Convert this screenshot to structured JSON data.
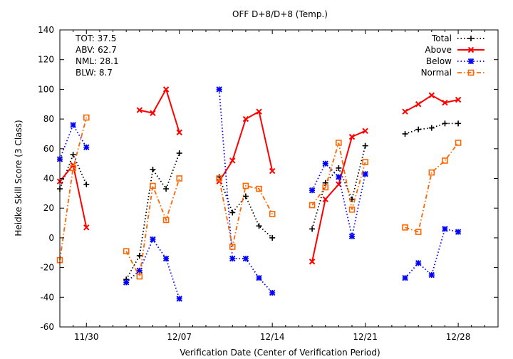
{
  "chart_data": {
    "type": "line",
    "title": "OFF D+8/D+8 (Temp.)",
    "xlabel": "Verification Date (Center of Verification Period)",
    "ylabel": "Heidke Skill Score (3 Class)",
    "xlim": [
      -2,
      31
    ],
    "ylim": [
      -60,
      140
    ],
    "x_ticks": [
      {
        "x": 0,
        "label": "11/30"
      },
      {
        "x": 7,
        "label": "12/07"
      },
      {
        "x": 14,
        "label": "12/14"
      },
      {
        "x": 21,
        "label": "12/21"
      },
      {
        "x": 28,
        "label": "12/28"
      }
    ],
    "y_ticks": [
      -60,
      -40,
      -20,
      0,
      20,
      40,
      60,
      80,
      100,
      120,
      140
    ],
    "grid": false,
    "legend_position": "top-right",
    "stats": [
      {
        "label": "TOT",
        "value": "37.5"
      },
      {
        "label": "ABV",
        "value": "62.7"
      },
      {
        "label": "NML",
        "value": "28.1"
      },
      {
        "label": "BLW",
        "value": "8.7"
      }
    ],
    "series": [
      {
        "name": "Total",
        "color": "#000000",
        "style": "dotted",
        "marker": "plus",
        "segments": [
          [
            [
              -2,
              33
            ],
            [
              -1,
              56
            ],
            [
              0,
              36
            ]
          ],
          [
            [
              3,
              -28
            ],
            [
              4,
              -12
            ],
            [
              5,
              46
            ],
            [
              6,
              33
            ],
            [
              7,
              57
            ]
          ],
          [
            [
              10,
              41
            ],
            [
              11,
              17
            ],
            [
              12,
              28
            ],
            [
              13,
              8
            ],
            [
              14,
              0
            ]
          ],
          [
            [
              17,
              6
            ],
            [
              18,
              37
            ],
            [
              19,
              47
            ],
            [
              20,
              26
            ],
            [
              21,
              62
            ]
          ],
          [
            [
              24,
              70
            ],
            [
              25,
              73
            ],
            [
              26,
              74
            ],
            [
              27,
              77
            ],
            [
              28,
              77
            ]
          ]
        ]
      },
      {
        "name": "Above",
        "color": "#ff0000",
        "style": "solid",
        "marker": "x",
        "segments": [
          [
            [
              -2,
              38
            ],
            [
              -1,
              49
            ],
            [
              0,
              7
            ]
          ],
          [
            [
              4,
              86
            ],
            [
              5,
              84
            ],
            [
              6,
              100
            ],
            [
              7,
              71
            ]
          ],
          [
            [
              10,
              38
            ],
            [
              11,
              52
            ],
            [
              12,
              80
            ],
            [
              13,
              85
            ],
            [
              14,
              45
            ]
          ],
          [
            [
              17,
              -16
            ],
            [
              18,
              26
            ],
            [
              19,
              36
            ],
            [
              20,
              68
            ],
            [
              21,
              72
            ]
          ],
          [
            [
              24,
              85
            ],
            [
              25,
              90
            ],
            [
              26,
              96
            ],
            [
              27,
              91
            ],
            [
              28,
              93
            ]
          ]
        ]
      },
      {
        "name": "Below",
        "color": "#0000ff",
        "style": "dotted",
        "marker": "star",
        "segments": [
          [
            [
              -2,
              53
            ],
            [
              -1,
              76
            ],
            [
              0,
              61
            ]
          ],
          [
            [
              3,
              -30
            ],
            [
              4,
              -22
            ],
            [
              5,
              -1
            ],
            [
              6,
              -14
            ],
            [
              7,
              -41
            ]
          ],
          [
            [
              10,
              100
            ],
            [
              11,
              -14
            ],
            [
              12,
              -14
            ],
            [
              13,
              -27
            ],
            [
              14,
              -37
            ]
          ],
          [
            [
              17,
              32
            ],
            [
              18,
              50
            ],
            [
              19,
              41
            ],
            [
              20,
              1
            ],
            [
              21,
              43
            ]
          ],
          [
            [
              24,
              -27
            ],
            [
              25,
              -17
            ],
            [
              26,
              -25
            ],
            [
              27,
              6
            ],
            [
              28,
              4
            ]
          ]
        ]
      },
      {
        "name": "Normal",
        "color": "#ff6600",
        "style": "dashdot",
        "marker": "square",
        "segments": [
          [
            [
              -2,
              -15
            ],
            [
              -1,
              47
            ],
            [
              0,
              81
            ]
          ],
          [
            [
              3,
              -9
            ],
            [
              4,
              -26
            ],
            [
              5,
              35
            ],
            [
              6,
              12
            ],
            [
              7,
              40
            ]
          ],
          [
            [
              10,
              40
            ],
            [
              11,
              -6
            ],
            [
              12,
              35
            ],
            [
              13,
              33
            ],
            [
              14,
              16
            ]
          ],
          [
            [
              17,
              22
            ],
            [
              18,
              34
            ],
            [
              19,
              64
            ],
            [
              20,
              19
            ],
            [
              21,
              51
            ]
          ],
          [
            [
              24,
              7
            ],
            [
              25,
              4
            ],
            [
              26,
              44
            ],
            [
              27,
              52
            ],
            [
              28,
              64
            ]
          ]
        ]
      }
    ]
  }
}
